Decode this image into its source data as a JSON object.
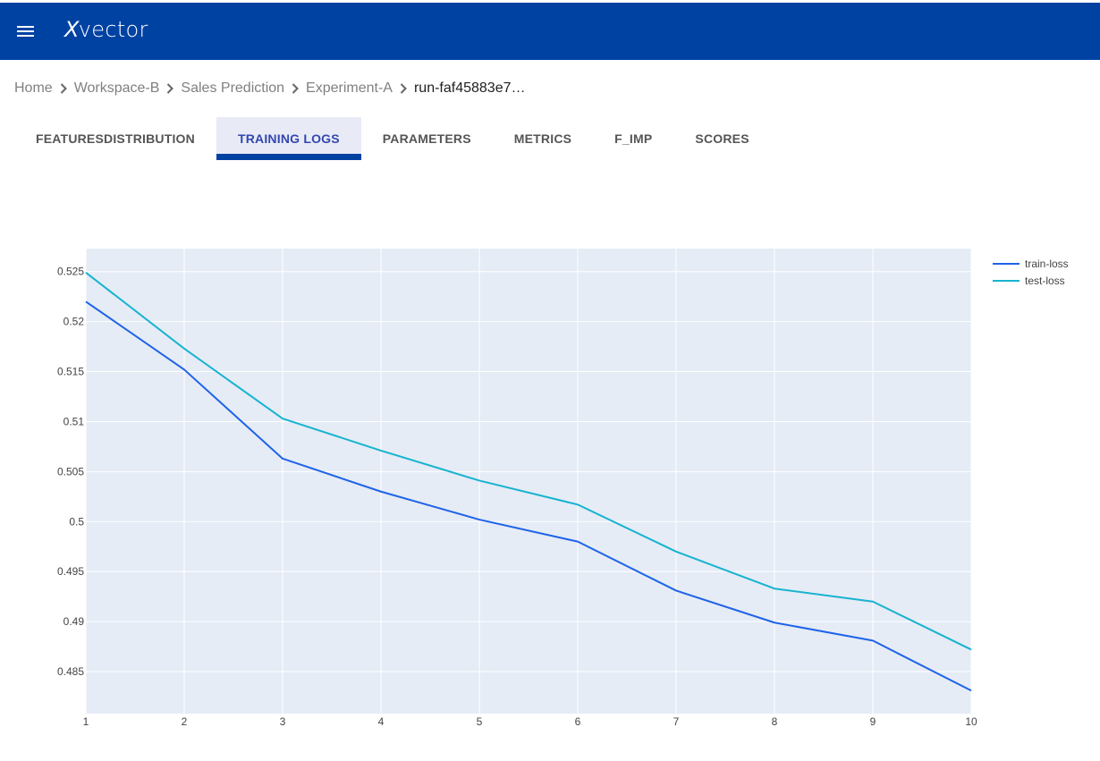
{
  "header": {
    "logo_text": "vector",
    "logo_mark": "X",
    "menu_icon": "hamburger-menu-icon"
  },
  "breadcrumb": {
    "items": [
      "Home",
      "Workspace-B",
      "Sales Prediction",
      "Experiment-A"
    ],
    "current": "run-faf45883e7…"
  },
  "tabs": [
    {
      "label": "FEATURESDISTRIBUTION",
      "active": false
    },
    {
      "label": "TRAINING LOGS",
      "active": true
    },
    {
      "label": "PARAMETERS",
      "active": false
    },
    {
      "label": "METRICS",
      "active": false
    },
    {
      "label": "F_IMP",
      "active": false
    },
    {
      "label": "SCORES",
      "active": false
    }
  ],
  "colors": {
    "header_bg": "#0042a2",
    "plot_bg": "#e5ecf6",
    "grid": "#ffffff"
  },
  "chart_data": {
    "type": "line",
    "x": [
      1,
      2,
      3,
      4,
      5,
      6,
      7,
      8,
      9,
      10
    ],
    "series": [
      {
        "name": "train-loss",
        "color": "#1f63e8",
        "values": [
          0.522,
          0.5152,
          0.5063,
          0.503,
          0.5002,
          0.498,
          0.4931,
          0.4899,
          0.4881,
          0.4831
        ]
      },
      {
        "name": "test-loss",
        "color": "#17b3cf",
        "values": [
          0.5249,
          0.5173,
          0.5103,
          0.5071,
          0.5041,
          0.5017,
          0.497,
          0.4933,
          0.492,
          0.4872
        ]
      }
    ],
    "xlim": [
      1,
      10
    ],
    "ylim": [
      0.4808,
      0.5273
    ],
    "xticks": [
      1,
      2,
      3,
      4,
      5,
      6,
      7,
      8,
      9,
      10
    ],
    "yticks": [
      0.485,
      0.49,
      0.495,
      0.5,
      0.505,
      0.51,
      0.515,
      0.52,
      0.525
    ],
    "ytick_labels": [
      "0.485",
      "0.49",
      "0.495",
      "0.5",
      "0.505",
      "0.51",
      "0.515",
      "0.52",
      "0.525"
    ],
    "grid": true,
    "legend_position": "top-right"
  }
}
